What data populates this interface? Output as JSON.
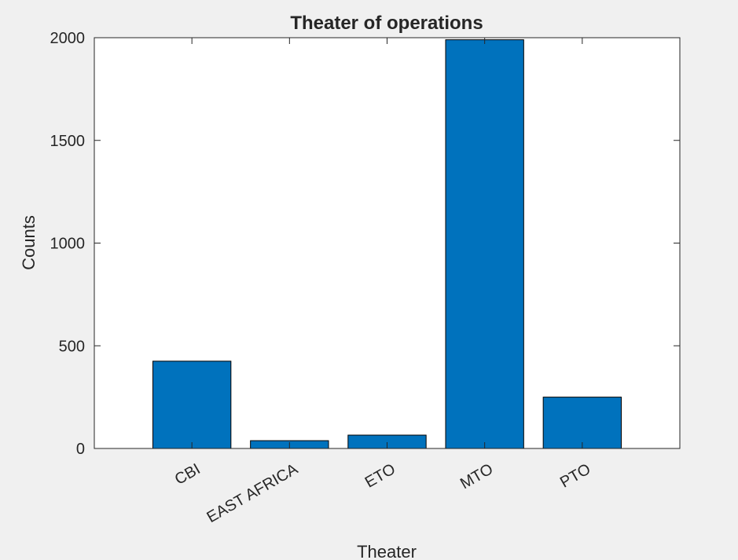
{
  "chart_data": {
    "type": "bar",
    "title": "Theater of operations",
    "xlabel": "Theater",
    "ylabel": "Counts",
    "categories": [
      "CBI",
      "EAST AFRICA",
      "ETO",
      "MTO",
      "PTO"
    ],
    "values": [
      425,
      38,
      65,
      1990,
      250
    ],
    "ylim": [
      0,
      2000
    ],
    "yticks": [
      0,
      500,
      1000,
      1500,
      2000
    ],
    "grid": false,
    "colors": {
      "bar_fill": "#0072bd",
      "bar_edge": "#000000",
      "axes_background": "#ffffff",
      "figure_background": "#f0f0f0",
      "axis_color": "#262626"
    }
  }
}
